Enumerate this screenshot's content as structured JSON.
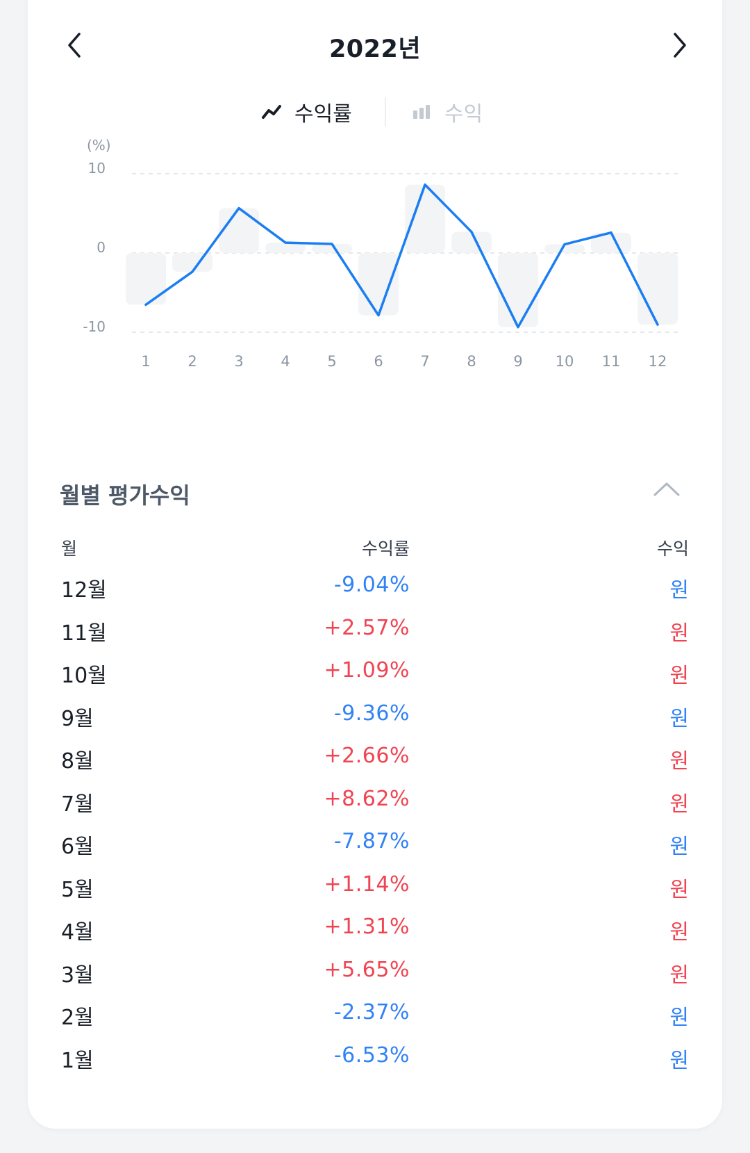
{
  "header": {
    "year_title": "2022년",
    "prev_icon": "chevron-left-icon",
    "next_icon": "chevron-right-icon"
  },
  "toggle": {
    "rate_label": "수익률",
    "rate_icon": "line-chart-icon",
    "profit_label": "수익",
    "profit_icon": "bar-chart-icon",
    "selected": "수익률"
  },
  "colors": {
    "positive": "#f04452",
    "negative": "#3182f6",
    "line": "#1a7ef2",
    "bar": "#f2f4f6"
  },
  "chart_data": {
    "type": "line",
    "unit_label": "(%)",
    "categories": [
      "1",
      "2",
      "3",
      "4",
      "5",
      "6",
      "7",
      "8",
      "9",
      "10",
      "11",
      "12"
    ],
    "values": [
      -6.53,
      -2.37,
      5.65,
      1.31,
      1.14,
      -7.87,
      8.62,
      2.66,
      -9.36,
      1.09,
      2.57,
      -9.04
    ],
    "bars_behind_line": true,
    "yticks": [
      10,
      0,
      -10
    ],
    "ytick_labels": [
      "10",
      "0",
      "-10"
    ],
    "ylim": [
      -10,
      10
    ],
    "grid": "dashed at ticks"
  },
  "section": {
    "title": "월별 평가수익",
    "collapse_icon": "chevron-up-icon"
  },
  "table": {
    "headers": {
      "month": "월",
      "rate": "수익률",
      "profit": "수익"
    },
    "rows": [
      {
        "month": "12월",
        "rate": "-9.04%",
        "profit": "원",
        "sign": "neg"
      },
      {
        "month": "11월",
        "rate": "+2.57%",
        "profit": "원",
        "sign": "pos"
      },
      {
        "month": "10월",
        "rate": "+1.09%",
        "profit": "원",
        "sign": "pos"
      },
      {
        "month": "9월",
        "rate": "-9.36%",
        "profit": "원",
        "sign": "neg"
      },
      {
        "month": "8월",
        "rate": "+2.66%",
        "profit": "원",
        "sign": "pos"
      },
      {
        "month": "7월",
        "rate": "+8.62%",
        "profit": "원",
        "sign": "pos"
      },
      {
        "month": "6월",
        "rate": "-7.87%",
        "profit": "원",
        "sign": "neg"
      },
      {
        "month": "5월",
        "rate": "+1.14%",
        "profit": "원",
        "sign": "pos"
      },
      {
        "month": "4월",
        "rate": "+1.31%",
        "profit": "원",
        "sign": "pos"
      },
      {
        "month": "3월",
        "rate": "+5.65%",
        "profit": "원",
        "sign": "pos"
      },
      {
        "month": "2월",
        "rate": "-2.37%",
        "profit": "원",
        "sign": "neg"
      },
      {
        "month": "1월",
        "rate": "-6.53%",
        "profit": "원",
        "sign": "neg"
      }
    ]
  }
}
